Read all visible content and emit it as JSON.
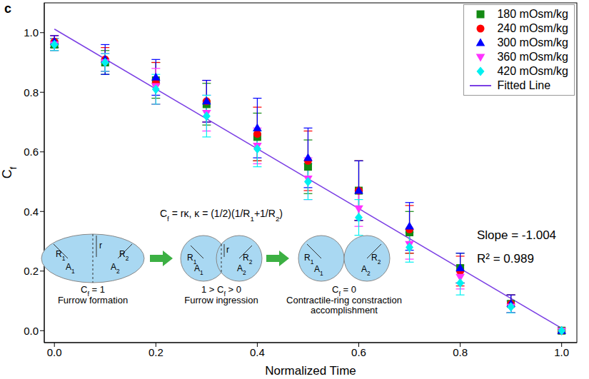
{
  "chart_data": {
    "type": "scatter",
    "panel_label": "c",
    "x_label": "Normalized Time",
    "y_label": "Cf",
    "x": [
      0,
      0.1,
      0.2,
      0.3,
      0.4,
      0.5,
      0.6,
      0.7,
      0.8,
      0.9,
      1.0
    ],
    "xlim": [
      -0.02,
      1.03
    ],
    "ylim": [
      -0.04,
      1.1
    ],
    "xticks": [
      {
        "value": 0,
        "label": "0.0"
      },
      0.2,
      0.4,
      0.6,
      0.8,
      {
        "value": 1,
        "label": "1.0"
      }
    ],
    "yticks": [
      {
        "value": 0,
        "label": "0.0"
      },
      0.2,
      0.4,
      0.6,
      0.8,
      {
        "value": 1,
        "label": "1.0"
      }
    ],
    "grid": false,
    "legend": "upper right",
    "series": [
      {
        "name": "180 mOsm/kg",
        "type": "scatter",
        "color": "#138a13",
        "marker": "square",
        "values": [
          0.96,
          0.9,
          0.84,
          0.76,
          0.65,
          0.55,
          0.47,
          0.33,
          0.21,
          0.09,
          0.0
        ],
        "errors": [
          0.02,
          0.04,
          0.06,
          0.07,
          0.08,
          0.09,
          0.1,
          0.07,
          0.05,
          0.03,
          0.0
        ]
      },
      {
        "name": "240 mOsm/kg",
        "type": "scatter",
        "color": "#ff0000",
        "marker": "circle",
        "values": [
          0.97,
          0.91,
          0.83,
          0.77,
          0.66,
          0.57,
          0.47,
          0.34,
          0.2,
          0.09,
          0.0
        ],
        "errors": [
          0.02,
          0.04,
          0.07,
          0.07,
          0.09,
          0.1,
          0.1,
          0.08,
          0.05,
          0.03,
          0.0
        ]
      },
      {
        "name": "300 mOsm/kg",
        "type": "scatter",
        "color": "#0000ff",
        "marker": "triangle",
        "values": [
          0.97,
          0.91,
          0.85,
          0.77,
          0.68,
          0.58,
          0.47,
          0.35,
          0.21,
          0.09,
          0.0
        ],
        "errors": [
          0.02,
          0.05,
          0.06,
          0.07,
          0.1,
          0.1,
          0.1,
          0.08,
          0.05,
          0.03,
          0.0
        ]
      },
      {
        "name": "360 mOsm/kg",
        "type": "scatter",
        "color": "#ff33ff",
        "marker": "triangle-down",
        "values": [
          0.96,
          0.9,
          0.82,
          0.73,
          0.62,
          0.51,
          0.41,
          0.29,
          0.18,
          0.08,
          0.0
        ],
        "errors": [
          0.02,
          0.03,
          0.06,
          0.06,
          0.06,
          0.07,
          0.06,
          0.05,
          0.04,
          0.02,
          0.0
        ]
      },
      {
        "name": "420 mOsm/kg",
        "type": "scatter",
        "color": "#00f0f0",
        "marker": "diamond",
        "values": [
          0.96,
          0.9,
          0.81,
          0.72,
          0.61,
          0.5,
          0.38,
          0.28,
          0.16,
          0.08,
          0.0
        ],
        "errors": [
          0.02,
          0.03,
          0.05,
          0.07,
          0.06,
          0.06,
          0.06,
          0.05,
          0.04,
          0.02,
          0.0
        ]
      },
      {
        "name": "Fitted Line",
        "type": "line",
        "color": "#7b3fe4",
        "line_style": "solid",
        "x": [
          0,
          1
        ],
        "values": [
          1.012,
          0.008
        ]
      }
    ],
    "annotations": [
      "Slope = -1.004",
      "R² = 0.989"
    ],
    "inset": {
      "formula": "Cf = rκ, κ = (1/2)(1/R1+1/R2)",
      "symbols": [
        "R1",
        "A1",
        "r",
        "R2",
        "A2"
      ],
      "stages": [
        {
          "value_text": "Cf = 1",
          "label": "Furrow formation"
        },
        {
          "value_text": "1 > Cf > 0",
          "label": "Furrow ingression"
        },
        {
          "value_text": "Cf = 0",
          "label": "Contractile-ring constraction accomplishment"
        }
      ]
    }
  }
}
